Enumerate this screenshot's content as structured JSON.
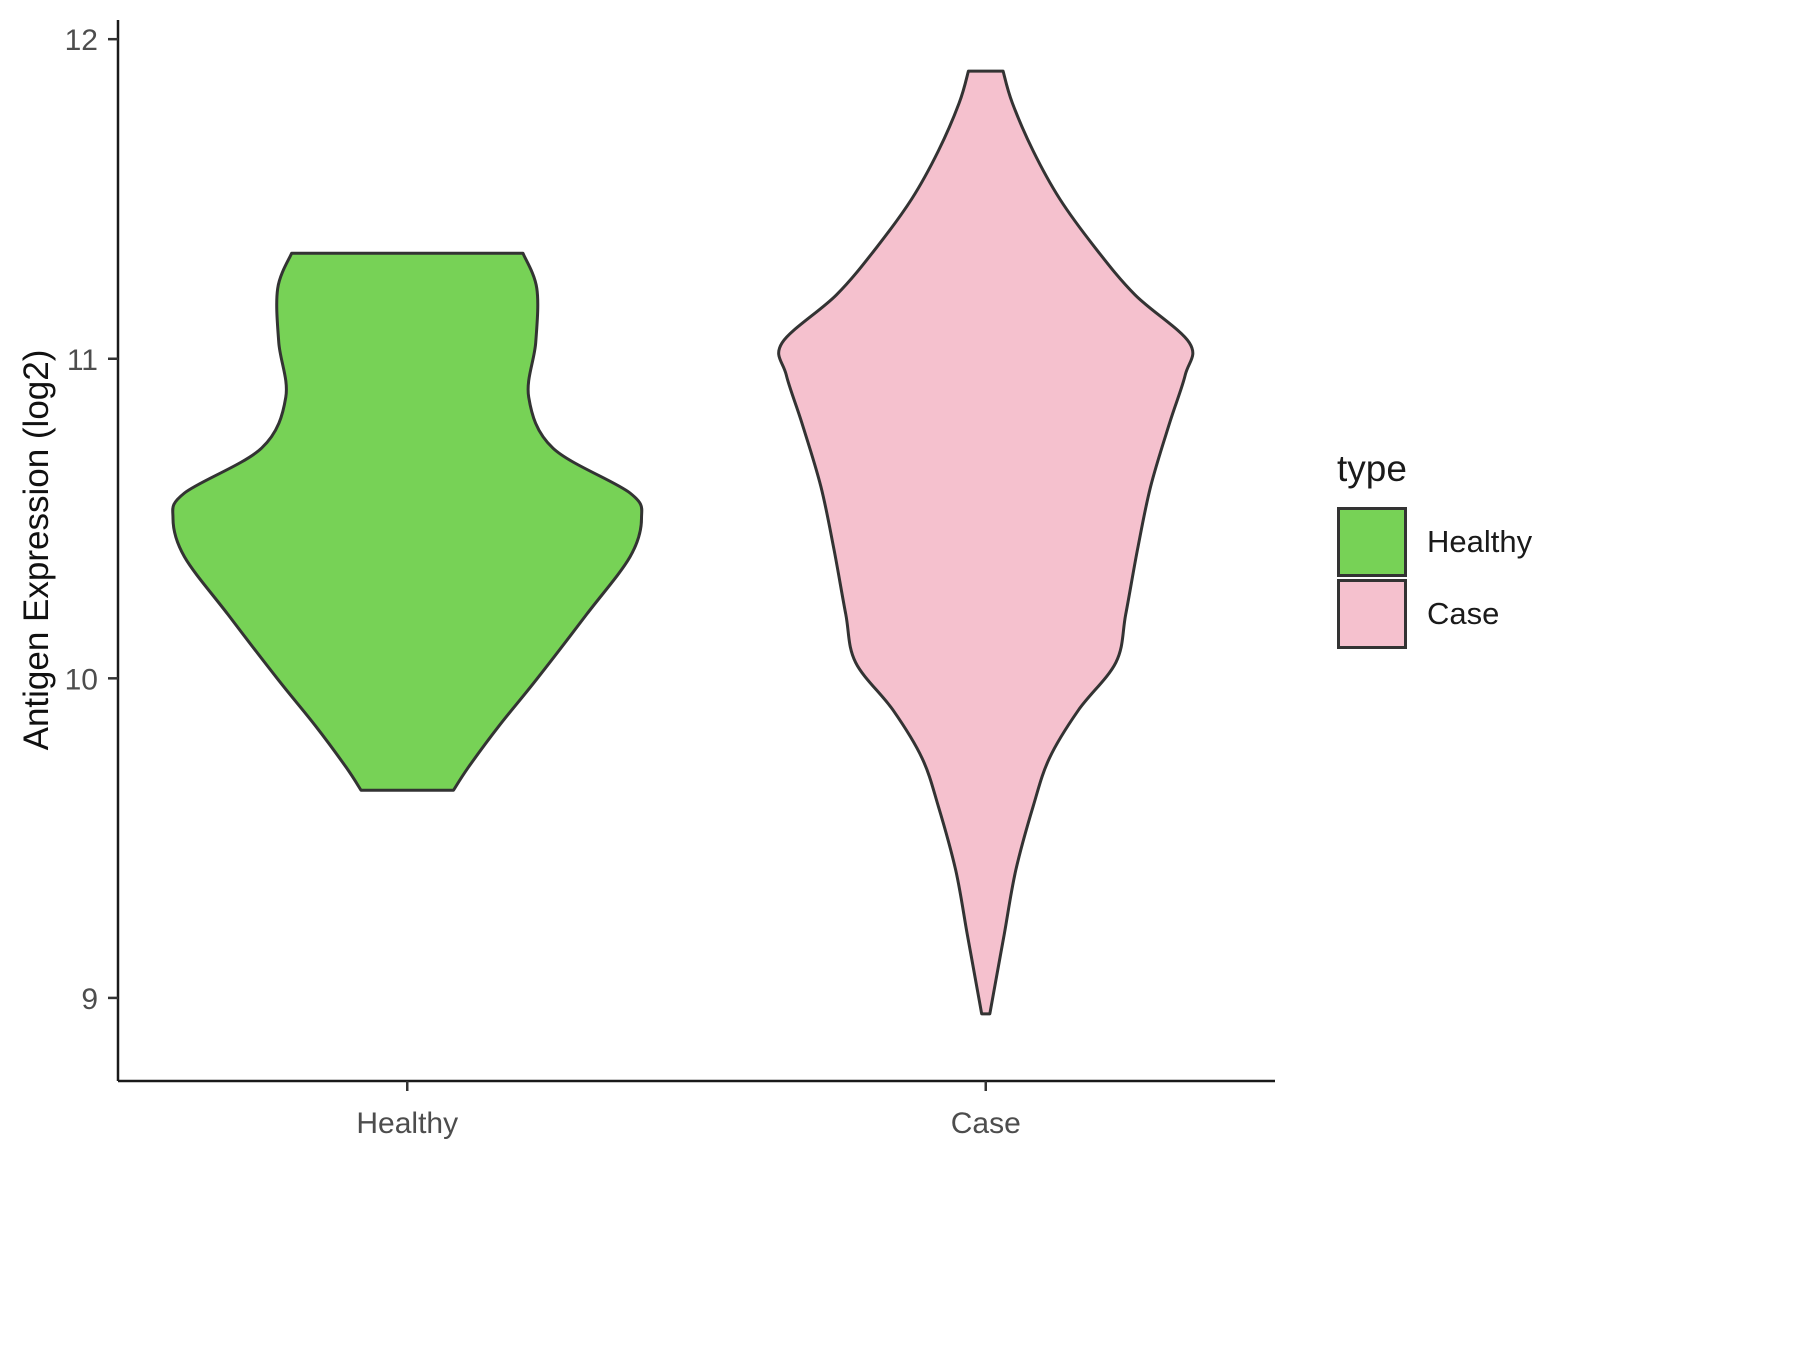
{
  "chart_data": {
    "type": "violin",
    "title": "",
    "xlabel": "",
    "ylabel": "Antigen Expression (log2)",
    "categories": [
      "Healthy",
      "Case"
    ],
    "yticks": [
      9,
      10,
      11,
      12
    ],
    "ylim": [
      8.74,
      12.06
    ],
    "grid": false,
    "stroke": "#333333",
    "axis_color": "#1a1a1a",
    "tick_text_color": "#4d4d4d",
    "legend": {
      "title": "type",
      "position": "right",
      "items": [
        {
          "label": "Healthy",
          "color": "#77D256"
        },
        {
          "label": "Case",
          "color": "#F5C1CE"
        }
      ]
    },
    "series": [
      {
        "name": "Healthy",
        "fill": "#77D256",
        "y_range": [
          9.65,
          11.33
        ],
        "profile": [
          [
            11.33,
            0.2
          ],
          [
            11.22,
            0.224
          ],
          [
            11.05,
            0.222
          ],
          [
            10.88,
            0.21
          ],
          [
            10.72,
            0.252
          ],
          [
            10.58,
            0.385
          ],
          [
            10.5,
            0.405
          ],
          [
            10.38,
            0.385
          ],
          [
            10.2,
            0.31
          ],
          [
            10.0,
            0.225
          ],
          [
            9.85,
            0.158
          ],
          [
            9.72,
            0.105
          ],
          [
            9.65,
            0.08
          ]
        ]
      },
      {
        "name": "Case",
        "fill": "#F5C1CE",
        "y_range": [
          8.95,
          11.9
        ],
        "profile": [
          [
            11.9,
            0.03
          ],
          [
            11.8,
            0.046
          ],
          [
            11.65,
            0.082
          ],
          [
            11.5,
            0.128
          ],
          [
            11.35,
            0.188
          ],
          [
            11.2,
            0.258
          ],
          [
            11.05,
            0.352
          ],
          [
            10.95,
            0.345
          ],
          [
            10.8,
            0.318
          ],
          [
            10.6,
            0.285
          ],
          [
            10.4,
            0.262
          ],
          [
            10.2,
            0.242
          ],
          [
            10.05,
            0.225
          ],
          [
            9.9,
            0.16
          ],
          [
            9.75,
            0.11
          ],
          [
            9.6,
            0.082
          ],
          [
            9.4,
            0.052
          ],
          [
            9.2,
            0.032
          ],
          [
            9.0,
            0.012
          ],
          [
            8.95,
            0.007
          ]
        ]
      }
    ]
  }
}
